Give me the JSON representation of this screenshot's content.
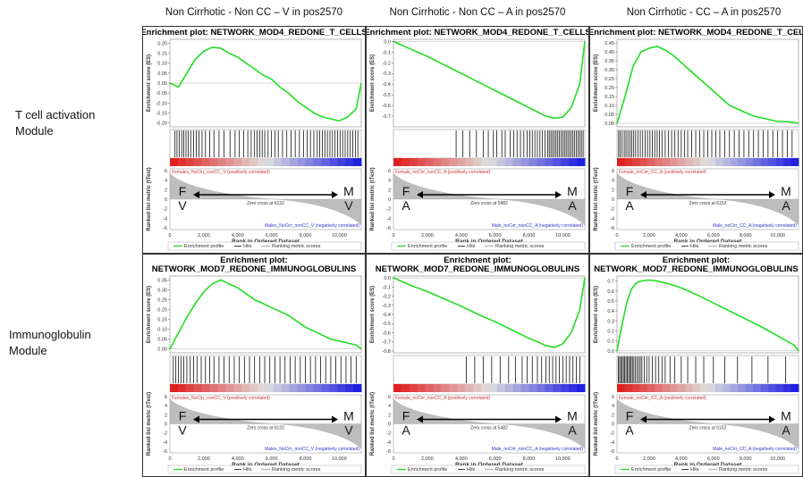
{
  "column_headers": [
    "Non Cirrhotic - Non CC – V in pos2570",
    "Non Cirrhotic - Non CC – A in pos2570",
    "Non Cirrhotic - CC – A in pos2570"
  ],
  "row_labels": [
    [
      "T cell activation",
      "Module"
    ],
    [
      "Immunoglobulin",
      "Module"
    ]
  ],
  "shared": {
    "es_axis_label": "Enrichment score (ES)",
    "metric_axis_label": "Ranked list metric (tTest)",
    "x_axis_label": "Rank in Ordered Dataset",
    "x_ticks": [
      "0",
      "2,000",
      "4,000",
      "6,000",
      "8,000",
      "10,000"
    ],
    "legend": [
      "Enrichment profile",
      "Hits",
      "Ranking metric scores"
    ],
    "metric_ticks": [
      "6",
      "4",
      "2",
      "0",
      "-2",
      "-4",
      "-6"
    ],
    "colors": {
      "curve": "#22dd22",
      "hit": "#111111",
      "pos": "#e02020",
      "neg": "#2020e0",
      "metric": "#bdbdbd"
    }
  },
  "chart_data": [
    {
      "type": "line",
      "title": [
        "Enrichment plot: NETWORK_MOD4_REDONE_T_CELLS"
      ],
      "xlabel": "Rank in Ordered Dataset",
      "ylabel": "Enrichment score (ES)",
      "xlim": [
        0,
        11300
      ],
      "ylim": [
        -0.22,
        0.22
      ],
      "yticks": [
        "0.20",
        "0.15",
        "0.10",
        "0.05",
        "0.00",
        "-0.05",
        "-0.10",
        "-0.15",
        "-0.20"
      ],
      "ytick_values": [
        0.2,
        0.15,
        0.1,
        0.05,
        0.0,
        -0.05,
        -0.1,
        -0.15,
        -0.2
      ],
      "x": [
        0,
        500,
        1000,
        1500,
        2000,
        2500,
        3000,
        3500,
        4000,
        4500,
        5000,
        5500,
        6000,
        6500,
        7000,
        7500,
        8000,
        8500,
        9000,
        9500,
        10000,
        10500,
        11000,
        11300
      ],
      "y": [
        0.0,
        -0.02,
        0.05,
        0.12,
        0.16,
        0.18,
        0.175,
        0.15,
        0.13,
        0.1,
        0.07,
        0.04,
        0.02,
        -0.02,
        -0.05,
        -0.09,
        -0.12,
        -0.15,
        -0.17,
        -0.18,
        -0.19,
        -0.17,
        -0.13,
        0.0
      ],
      "hits": [
        300,
        420,
        560,
        700,
        820,
        950,
        1080,
        1230,
        1400,
        1560,
        1720,
        1900,
        2100,
        2350,
        2600,
        2900,
        3200,
        3550,
        3850,
        4100,
        4350,
        4600,
        4800,
        5000,
        5150,
        5300,
        5450,
        5600,
        5800,
        6000,
        6200,
        6400,
        6650,
        6900,
        7150,
        7400,
        7650,
        7900,
        8100,
        8300,
        8500,
        8700,
        8850,
        9000,
        9150,
        9300,
        9450,
        9600,
        9750,
        9900,
        10050,
        10200,
        10350,
        10500,
        10650,
        10800,
        10950,
        11100
      ],
      "pos_label": "Females_NoCirr_nonCC_V (positively correlated)",
      "neg_label": "Males_NoCirr_nonCC_V (negatively correlated)",
      "zero_cross": "Zero cross at 6132",
      "annot": {
        "left_top": "F",
        "left_bot": "V",
        "right_top": "M",
        "right_bot": "V"
      }
    },
    {
      "type": "line",
      "title": [
        "Enrichment plot: NETWORK_MOD4_REDONE_T_CELLS"
      ],
      "xlabel": "Rank in Ordered Dataset",
      "ylabel": "Enrichment score (ES)",
      "xlim": [
        0,
        11300
      ],
      "ylim": [
        -0.8,
        0.02
      ],
      "yticks": [
        "0.0",
        "-0.1",
        "-0.2",
        "-0.3",
        "-0.4",
        "-0.5",
        "-0.6",
        "-0.7"
      ],
      "ytick_values": [
        0.0,
        -0.1,
        -0.2,
        -0.3,
        -0.4,
        -0.5,
        -0.6,
        -0.7
      ],
      "x": [
        0,
        1000,
        2000,
        3000,
        4000,
        5000,
        6000,
        7000,
        8000,
        8500,
        9000,
        9500,
        10000,
        10500,
        11000,
        11300
      ],
      "y": [
        0.0,
        -0.07,
        -0.14,
        -0.22,
        -0.3,
        -0.38,
        -0.46,
        -0.54,
        -0.62,
        -0.66,
        -0.7,
        -0.72,
        -0.71,
        -0.62,
        -0.4,
        0.0
      ],
      "hits": [
        3700,
        4100,
        4500,
        4900,
        5300,
        5600,
        5900,
        6100,
        6400,
        6600,
        6900,
        7100,
        7300,
        7500,
        7700,
        7900,
        8050,
        8200,
        8350,
        8500,
        8650,
        8800,
        8950,
        9100,
        9200,
        9300,
        9400,
        9500,
        9600,
        9700,
        9800,
        9900,
        10000,
        10100,
        10200,
        10300,
        10400,
        10500,
        10600,
        10700,
        10800,
        10900,
        11000,
        11100,
        11200
      ],
      "pos_label": "Female_noCirr_nonCC_A (positively correlated)",
      "neg_label": "Male_noCirr_nonCC_A (negatively correlated)",
      "zero_cross": "Zero cross at 5482",
      "annot": {
        "left_top": "F",
        "left_bot": "A",
        "right_top": "M",
        "right_bot": "A"
      }
    },
    {
      "type": "line",
      "title": [
        "Enrichment plot: NETWORK_MOD4_REDONE_T_CEL"
      ],
      "xlabel": "Rank in Ordered Dataset",
      "ylabel": "Enrichment score (ES)",
      "xlim": [
        0,
        11300
      ],
      "ylim": [
        -0.02,
        0.47
      ],
      "yticks": [
        "0.45",
        "0.40",
        "0.35",
        "0.30",
        "0.25",
        "0.20",
        "0.15",
        "0.10",
        "0.05",
        "0.00"
      ],
      "ytick_values": [
        0.45,
        0.4,
        0.35,
        0.3,
        0.25,
        0.2,
        0.15,
        0.1,
        0.05,
        0.0
      ],
      "x": [
        0,
        500,
        1000,
        1500,
        2000,
        2500,
        3000,
        3500,
        4000,
        4500,
        5000,
        5500,
        6000,
        6500,
        7000,
        7500,
        8000,
        8500,
        9000,
        9500,
        10000,
        10500,
        11000,
        11300
      ],
      "y": [
        0.0,
        0.15,
        0.32,
        0.4,
        0.42,
        0.43,
        0.41,
        0.38,
        0.34,
        0.3,
        0.26,
        0.22,
        0.18,
        0.14,
        0.1,
        0.08,
        0.06,
        0.04,
        0.03,
        0.02,
        0.01,
        0.01,
        0.005,
        0.0
      ],
      "hits": [
        100,
        200,
        320,
        450,
        560,
        680,
        800,
        920,
        1040,
        1160,
        1300,
        1450,
        1600,
        1750,
        1900,
        2050,
        2200,
        2350,
        2500,
        2650,
        2800,
        3000,
        3200,
        3400,
        3600,
        3800,
        4000,
        4200,
        4400,
        4650,
        4900,
        5150,
        5400,
        5650,
        5900,
        6150,
        6400,
        6700,
        7000,
        7300,
        7600,
        7900,
        8200,
        8500,
        8800,
        9100,
        9400,
        9700,
        10000,
        10300,
        10600,
        10900
      ],
      "pos_label": "Female_noCirr_CC_A (positively correlated)",
      "neg_label": "Male_noCirr_CC_A (negatively correlated)",
      "zero_cross": "Zero cross at 6152",
      "annot": {
        "left_top": "F",
        "left_bot": "A",
        "right_top": "M",
        "right_bot": "A"
      }
    },
    {
      "type": "line",
      "title": [
        "Enrichment plot:",
        "NETWORK_MOD7_REDONE_IMMUNOGLOBULINS"
      ],
      "xlabel": "Rank in Ordered Dataset",
      "ylabel": "Enrichment score (ES)",
      "xlim": [
        0,
        11300
      ],
      "ylim": [
        -0.02,
        0.37
      ],
      "yticks": [
        "0.35",
        "0.30",
        "0.25",
        "0.20",
        "0.15",
        "0.10",
        "0.05",
        "0.00"
      ],
      "ytick_values": [
        0.35,
        0.3,
        0.25,
        0.2,
        0.15,
        0.1,
        0.05,
        0.0
      ],
      "x": [
        0,
        500,
        1000,
        1500,
        2000,
        2500,
        3000,
        3500,
        4000,
        4500,
        5000,
        5500,
        6000,
        6500,
        7000,
        7500,
        8000,
        8500,
        9000,
        9500,
        10000,
        10500,
        11000,
        11300
      ],
      "y": [
        0.0,
        0.08,
        0.16,
        0.23,
        0.29,
        0.33,
        0.35,
        0.33,
        0.31,
        0.28,
        0.25,
        0.23,
        0.21,
        0.19,
        0.17,
        0.14,
        0.11,
        0.09,
        0.07,
        0.05,
        0.04,
        0.03,
        0.02,
        0.0
      ],
      "hits": [
        200,
        350,
        500,
        650,
        820,
        1000,
        1200,
        1400,
        1600,
        1850,
        2100,
        2350,
        2600,
        2900,
        3200,
        3500,
        3800,
        4100,
        4400,
        4700,
        5000,
        5300,
        5600,
        5900,
        6200,
        6500,
        6800,
        7100,
        7400,
        7700,
        8000,
        8300,
        8600,
        8900,
        9200,
        9500,
        9800,
        10100,
        10400,
        10700,
        11000
      ],
      "pos_label": "Females_NoCirr_nonCC_V (positively correlated)",
      "neg_label": "Males_NoCirr_nonCC_V (negatively correlated)",
      "zero_cross": "Zero cross at 6132",
      "annot": {
        "left_top": "F",
        "left_bot": "V",
        "right_top": "M",
        "right_bot": "V"
      }
    },
    {
      "type": "line",
      "title": [
        "Enrichment plot:",
        "NETWORK_MOD7_REDONE_IMMUNOGLOBULINS"
      ],
      "xlabel": "Rank in Ordered Dataset",
      "ylabel": "Enrichment score (ES)",
      "xlim": [
        0,
        11300
      ],
      "ylim": [
        -0.82,
        0.02
      ],
      "yticks": [
        "0.0",
        "-0.1",
        "-0.2",
        "-0.3",
        "-0.4",
        "-0.5",
        "-0.6",
        "-0.7",
        "-0.8"
      ],
      "ytick_values": [
        0.0,
        -0.1,
        -0.2,
        -0.3,
        -0.4,
        -0.5,
        -0.6,
        -0.7,
        -0.8
      ],
      "x": [
        0,
        1000,
        2000,
        3000,
        4000,
        5000,
        6000,
        7000,
        8000,
        8500,
        9000,
        9500,
        10000,
        10500,
        11000,
        11300
      ],
      "y": [
        0.0,
        -0.08,
        -0.15,
        -0.23,
        -0.31,
        -0.4,
        -0.48,
        -0.57,
        -0.66,
        -0.7,
        -0.74,
        -0.76,
        -0.72,
        -0.6,
        -0.35,
        0.0
      ],
      "hits": [
        4300,
        4800,
        5300,
        5800,
        6300,
        6800,
        7200,
        7600,
        7900,
        8200,
        8500,
        8750,
        9000,
        9200,
        9400,
        9600,
        9800,
        10000,
        10200,
        10400,
        10600,
        10800,
        11000
      ],
      "pos_label": "Female_noCirr_nonCC_A (positively correlated)",
      "neg_label": "Male_noCirr_nonCC_A (negatively correlated)",
      "zero_cross": "Zero cross at 5482",
      "annot": {
        "left_top": "F",
        "left_bot": "A",
        "right_top": "M",
        "right_bot": "A"
      }
    },
    {
      "type": "line",
      "title": [
        "Enrichment plot:",
        "NETWORK_MOD7_REDONE_IMMUNOGLOBULINS"
      ],
      "xlabel": "Rank in Ordered Dataset",
      "ylabel": "Enrichment score (ES)",
      "xlim": [
        0,
        11300
      ],
      "ylim": [
        -0.02,
        0.75
      ],
      "yticks": [
        "0.7",
        "0.6",
        "0.5",
        "0.4",
        "0.3",
        "0.2",
        "0.1",
        "0.0"
      ],
      "ytick_values": [
        0.7,
        0.6,
        0.5,
        0.4,
        0.3,
        0.2,
        0.1,
        0.0
      ],
      "x": [
        0,
        300,
        600,
        900,
        1200,
        1500,
        2000,
        2500,
        3000,
        3500,
        4000,
        5000,
        6000,
        7000,
        8000,
        9000,
        10000,
        11000,
        11300
      ],
      "y": [
        0.0,
        0.25,
        0.48,
        0.62,
        0.68,
        0.7,
        0.71,
        0.7,
        0.68,
        0.66,
        0.63,
        0.56,
        0.48,
        0.4,
        0.32,
        0.24,
        0.15,
        0.06,
        0.0
      ],
      "hits": [
        80,
        160,
        240,
        320,
        400,
        480,
        560,
        640,
        720,
        800,
        880,
        960,
        1050,
        1150,
        1250,
        1350,
        1450,
        1550,
        1700,
        1850,
        2000,
        2200,
        2400,
        2600,
        2800,
        3000,
        3300,
        3600,
        4000,
        4400,
        4900,
        5400,
        6000,
        6700,
        7500,
        8400,
        9400,
        10500
      ],
      "pos_label": "Female_noCirr_CC_A (positively correlated)",
      "neg_label": "Male_noCirr_CC_A (negatively correlated)",
      "zero_cross": "Zero cross at 6152",
      "annot": {
        "left_top": "F",
        "left_bot": "A",
        "right_top": "M",
        "right_bot": "A"
      }
    }
  ]
}
